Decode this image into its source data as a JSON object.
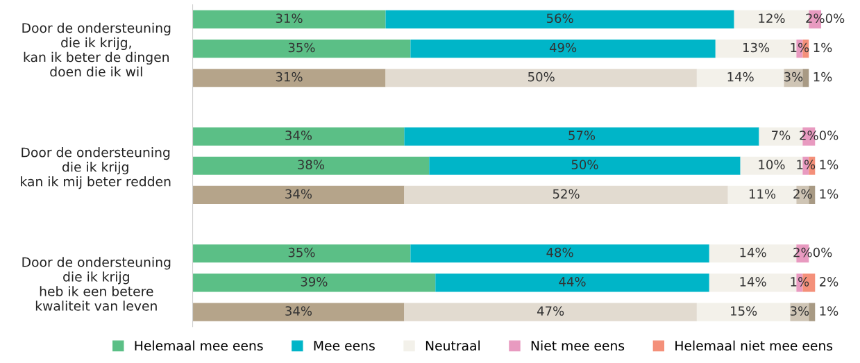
{
  "chart_data": {
    "type": "bar",
    "orientation": "horizontal",
    "stacked": true,
    "categories": [
      null,
      "Door de ondersteuning\ndie ik krijg,\nkan ik beter de dingen\ndoen die ik wil",
      null,
      null,
      null,
      "Door de ondersteuning\ndie ik krijg\nkan ik mij beter redden",
      null,
      null,
      null,
      "Door de ondersteuning\ndie ik krijg\nheb ik een betere\nkwaliteit van leven",
      null
    ],
    "series": [
      {
        "name": "Helemaal mee eens",
        "color": "#5bbf86",
        "colors": [
          "#5bbf86",
          "#5bbf86",
          "#b5a48a",
          null,
          "#5bbf86",
          "#5bbf86",
          "#b5a48a",
          null,
          "#5bbf86",
          "#5bbf86",
          "#b5a48a"
        ],
        "values": [
          31,
          35,
          31,
          null,
          34,
          38,
          34,
          null,
          35,
          39,
          34
        ],
        "value_labels": [
          "31%",
          "35%",
          "31%",
          null,
          "34%",
          "38%",
          "34%",
          null,
          "35%",
          "39%",
          "34%"
        ]
      },
      {
        "name": "Mee eens",
        "color": "#00b5c8",
        "colors": [
          "#00b5c8",
          "#00b5c8",
          "#e2dbd0",
          null,
          "#00b5c8",
          "#00b5c8",
          "#e2dbd0",
          null,
          "#00b5c8",
          "#00b5c8",
          "#e2dbd0"
        ],
        "values": [
          56,
          49,
          50,
          null,
          57,
          50,
          52,
          null,
          48,
          44,
          47
        ],
        "value_labels": [
          "56%",
          "49%",
          "50%",
          null,
          "57%",
          "50%",
          "52%",
          null,
          "48%",
          "44%",
          "47%"
        ]
      },
      {
        "name": "Neutraal",
        "color": "#f3f1ea",
        "colors": [
          "#f3f1ea",
          "#f3f1ea",
          "#f3f1ea",
          null,
          "#f3f1ea",
          "#f3f1ea",
          "#f3f1ea",
          null,
          "#f3f1ea",
          "#f3f1ea",
          "#f3f1ea"
        ],
        "values": [
          12,
          13,
          14,
          null,
          7,
          10,
          11,
          null,
          14,
          14,
          15
        ],
        "value_labels": [
          "12%",
          "13%",
          "14%",
          null,
          "7%",
          "10%",
          "11%",
          null,
          "14%",
          "14%",
          "15%"
        ]
      },
      {
        "name": "Niet mee eens",
        "color": "#e89ac0",
        "colors": [
          "#e89ac0",
          "#e89ac0",
          "#cfc5b5",
          null,
          "#e89ac0",
          "#e89ac0",
          "#cfc5b5",
          null,
          "#e89ac0",
          "#e89ac0",
          "#cfc5b5"
        ],
        "values": [
          2,
          1,
          3,
          null,
          2,
          1,
          2,
          null,
          2,
          1,
          3
        ],
        "value_labels": [
          "2%",
          "1%",
          "3%",
          null,
          "2%",
          "1%",
          "2%",
          null,
          "2%",
          "1%",
          "3%"
        ]
      },
      {
        "name": "Helemaal niet mee eens",
        "color": "#f4907a",
        "colors": [
          "#f4907a",
          "#f4907a",
          "#a89a84",
          null,
          "#f4907a",
          "#f4907a",
          "#a89a84",
          null,
          "#f4907a",
          "#f4907a",
          "#a89a84"
        ],
        "values": [
          0,
          1,
          1,
          null,
          0,
          1,
          1,
          null,
          0,
          2,
          1
        ],
        "value_labels": [
          "0%",
          "1%",
          "1%",
          null,
          "0%",
          "1%",
          "1%",
          null,
          "0%",
          "2%",
          "1%"
        ]
      }
    ],
    "legend": "bottom"
  }
}
